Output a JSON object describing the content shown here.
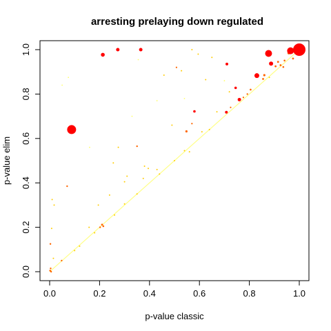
{
  "chart_data": {
    "type": "scatter",
    "title": "arresting prelaying down regulated",
    "xlabel": "p-value classic",
    "ylabel": "p-value elim",
    "xlim": [
      0,
      1
    ],
    "ylim": [
      0,
      1
    ],
    "xticks": [
      "0.0",
      "0.2",
      "0.4",
      "0.6",
      "0.8",
      "1.0"
    ],
    "yticks": [
      "0.0",
      "0.2",
      "0.4",
      "0.6",
      "0.8",
      "1.0"
    ],
    "grid": false,
    "legend": "none",
    "colors": {
      "high": "#ff0000",
      "mid": "#ff6600",
      "low": "#ffcc00",
      "faint": "#ffff66"
    },
    "points": [
      {
        "x": 1.0,
        "y": 1.0,
        "s": 9,
        "c": "high"
      },
      {
        "x": 0.965,
        "y": 0.995,
        "s": 5,
        "c": "high"
      },
      {
        "x": 0.877,
        "y": 0.983,
        "s": 5,
        "c": "high"
      },
      {
        "x": 0.887,
        "y": 0.937,
        "s": 3,
        "c": "high"
      },
      {
        "x": 0.83,
        "y": 0.883,
        "s": 3.5,
        "c": "high"
      },
      {
        "x": 0.088,
        "y": 0.64,
        "s": 6.5,
        "c": "high"
      },
      {
        "x": 0.213,
        "y": 0.977,
        "s": 2.8,
        "c": "high"
      },
      {
        "x": 0.273,
        "y": 1.0,
        "s": 2.5,
        "c": "high"
      },
      {
        "x": 0.365,
        "y": 1.0,
        "s": 2.5,
        "c": "high"
      },
      {
        "x": 0.76,
        "y": 0.775,
        "s": 2.5,
        "c": "high"
      },
      {
        "x": 0.71,
        "y": 0.935,
        "s": 2,
        "c": "high"
      },
      {
        "x": 0.708,
        "y": 0.718,
        "s": 2,
        "c": "high"
      },
      {
        "x": 0.58,
        "y": 0.722,
        "s": 1.8,
        "c": "high"
      },
      {
        "x": 0.745,
        "y": 0.828,
        "s": 1.8,
        "c": "high"
      },
      {
        "x": 0.548,
        "y": 0.632,
        "s": 1.6,
        "c": "mid"
      },
      {
        "x": 0.958,
        "y": 0.985,
        "s": 2,
        "c": "mid"
      },
      {
        "x": 0.983,
        "y": 0.995,
        "s": 1.8,
        "c": "mid"
      },
      {
        "x": 0.86,
        "y": 0.885,
        "s": 1.6,
        "c": "mid"
      },
      {
        "x": 0.855,
        "y": 0.868,
        "s": 1.4,
        "c": "mid"
      },
      {
        "x": 0.905,
        "y": 0.925,
        "s": 1.4,
        "c": "mid"
      },
      {
        "x": 0.915,
        "y": 0.945,
        "s": 1.4,
        "c": "mid"
      },
      {
        "x": 0.925,
        "y": 0.93,
        "s": 1.4,
        "c": "mid"
      },
      {
        "x": 0.975,
        "y": 0.96,
        "s": 1.4,
        "c": "mid"
      },
      {
        "x": 0.941,
        "y": 0.951,
        "s": 1.3,
        "c": "mid"
      },
      {
        "x": 0.936,
        "y": 0.922,
        "s": 1.3,
        "c": "mid"
      },
      {
        "x": 0.805,
        "y": 0.82,
        "s": 1.3,
        "c": "mid"
      },
      {
        "x": 0.792,
        "y": 0.8,
        "s": 1.2,
        "c": "mid"
      },
      {
        "x": 0.07,
        "y": 0.385,
        "s": 1.2,
        "c": "mid"
      },
      {
        "x": 0.21,
        "y": 0.212,
        "s": 1.4,
        "c": "mid"
      },
      {
        "x": 0.215,
        "y": 0.205,
        "s": 1.3,
        "c": "mid"
      },
      {
        "x": 0.202,
        "y": 0.2,
        "s": 1.2,
        "c": "mid"
      },
      {
        "x": 0.048,
        "y": 0.05,
        "s": 1.2,
        "c": "mid"
      },
      {
        "x": 0.003,
        "y": 0.125,
        "s": 1.2,
        "c": "mid"
      },
      {
        "x": 0.002,
        "y": 0.005,
        "s": 1.3,
        "c": "mid"
      },
      {
        "x": 0.004,
        "y": 0.015,
        "s": 1.2,
        "c": "mid"
      },
      {
        "x": 0.006,
        "y": 0.0,
        "s": 1.2,
        "c": "mid"
      },
      {
        "x": 0.35,
        "y": 0.565,
        "s": 1.2,
        "c": "mid"
      },
      {
        "x": 0.57,
        "y": 0.667,
        "s": 1.1,
        "c": "mid"
      },
      {
        "x": 0.725,
        "y": 0.74,
        "s": 1.1,
        "c": "mid"
      },
      {
        "x": 0.776,
        "y": 0.785,
        "s": 1.1,
        "c": "mid"
      },
      {
        "x": 0.508,
        "y": 0.92,
        "s": 1.1,
        "c": "mid"
      },
      {
        "x": 0.528,
        "y": 0.905,
        "s": 1.0,
        "c": "low"
      },
      {
        "x": 0.49,
        "y": 0.66,
        "s": 1.0,
        "c": "low"
      },
      {
        "x": 0.67,
        "y": 0.72,
        "s": 1.0,
        "c": "low"
      },
      {
        "x": 0.65,
        "y": 0.965,
        "s": 1.0,
        "c": "low"
      },
      {
        "x": 0.458,
        "y": 0.885,
        "s": 1.0,
        "c": "low"
      },
      {
        "x": 0.395,
        "y": 0.465,
        "s": 1.0,
        "c": "low"
      },
      {
        "x": 0.43,
        "y": 0.46,
        "s": 1.0,
        "c": "low"
      },
      {
        "x": 0.38,
        "y": 0.475,
        "s": 1.0,
        "c": "low"
      },
      {
        "x": 0.375,
        "y": 0.42,
        "s": 1.0,
        "c": "low"
      },
      {
        "x": 0.31,
        "y": 0.43,
        "s": 1.0,
        "c": "low"
      },
      {
        "x": 0.3,
        "y": 0.405,
        "s": 1.0,
        "c": "low"
      },
      {
        "x": 0.275,
        "y": 0.56,
        "s": 1.0,
        "c": "low"
      },
      {
        "x": 0.255,
        "y": 0.49,
        "s": 1.0,
        "c": "low"
      },
      {
        "x": 0.24,
        "y": 0.345,
        "s": 1.0,
        "c": "low"
      },
      {
        "x": 0.195,
        "y": 0.3,
        "s": 1.0,
        "c": "low"
      },
      {
        "x": 0.158,
        "y": 0.2,
        "s": 1.0,
        "c": "low"
      },
      {
        "x": 0.12,
        "y": 0.115,
        "s": 1.0,
        "c": "low"
      },
      {
        "x": 0.01,
        "y": 0.325,
        "s": 1.0,
        "c": "low"
      },
      {
        "x": 0.018,
        "y": 0.3,
        "s": 1.0,
        "c": "low"
      },
      {
        "x": 0.008,
        "y": 0.195,
        "s": 1.0,
        "c": "low"
      },
      {
        "x": 0.015,
        "y": 0.06,
        "s": 1.0,
        "c": "low"
      },
      {
        "x": 0.56,
        "y": 0.54,
        "s": 1.0,
        "c": "low"
      },
      {
        "x": 0.54,
        "y": 0.545,
        "s": 1.0,
        "c": "low"
      },
      {
        "x": 0.595,
        "y": 0.98,
        "s": 1.0,
        "c": "low"
      },
      {
        "x": 0.57,
        "y": 1.0,
        "s": 1.0,
        "c": "low"
      },
      {
        "x": 0.61,
        "y": 0.63,
        "s": 1.0,
        "c": "low"
      },
      {
        "x": 0.625,
        "y": 0.865,
        "s": 1.0,
        "c": "low"
      },
      {
        "x": 0.72,
        "y": 0.81,
        "s": 1.0,
        "c": "low"
      },
      {
        "x": 0.35,
        "y": 0.35,
        "s": 1.0,
        "c": "low"
      },
      {
        "x": 0.3,
        "y": 0.305,
        "s": 1.0,
        "c": "low"
      },
      {
        "x": 0.26,
        "y": 0.255,
        "s": 1.0,
        "c": "low"
      },
      {
        "x": 0.18,
        "y": 0.175,
        "s": 1.0,
        "c": "low"
      },
      {
        "x": 0.1,
        "y": 0.095,
        "s": 1.0,
        "c": "low"
      },
      {
        "x": 0.44,
        "y": 0.44,
        "s": 1.0,
        "c": "low"
      },
      {
        "x": 0.5,
        "y": 0.5,
        "s": 1.0,
        "c": "low"
      },
      {
        "x": 0.64,
        "y": 0.64,
        "s": 1.0,
        "c": "low"
      },
      {
        "x": 0.88,
        "y": 0.875,
        "s": 1.0,
        "c": "low"
      },
      {
        "x": 0.54,
        "y": 0.78,
        "s": 0.9,
        "c": "faint"
      },
      {
        "x": 0.43,
        "y": 0.77,
        "s": 0.9,
        "c": "faint"
      },
      {
        "x": 0.7,
        "y": 0.86,
        "s": 0.9,
        "c": "faint"
      },
      {
        "x": 0.075,
        "y": 0.875,
        "s": 0.9,
        "c": "faint"
      },
      {
        "x": 0.05,
        "y": 0.84,
        "s": 0.9,
        "c": "faint"
      },
      {
        "x": 0.355,
        "y": 0.955,
        "s": 0.9,
        "c": "faint"
      },
      {
        "x": 0.16,
        "y": 0.56,
        "s": 0.9,
        "c": "faint"
      },
      {
        "x": 0.33,
        "y": 0.7,
        "s": 0.9,
        "c": "faint"
      }
    ],
    "diagonal": {
      "from": [
        0,
        0
      ],
      "to": [
        1,
        1
      ],
      "color": "#ffff88"
    }
  }
}
